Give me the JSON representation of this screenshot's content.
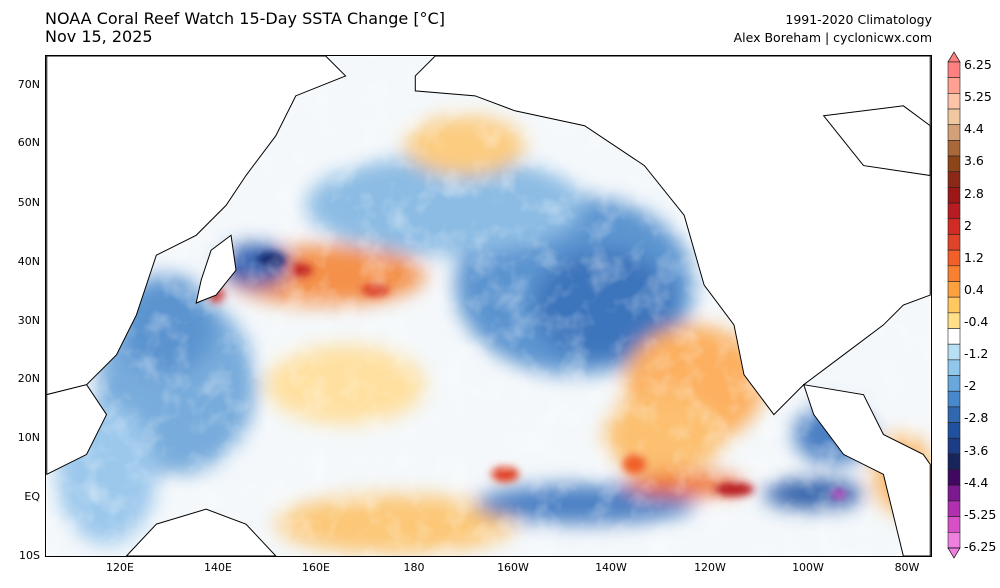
{
  "header": {
    "title": "NOAA Coral Reef Watch 15-Day SSTA Change [°C]",
    "date": "Nov 15, 2025",
    "climatology": "1991-2020 Climatology",
    "author": "Alex Boreham | cyclonicwx.com"
  },
  "map": {
    "lat_labels": [
      "70N",
      "60N",
      "50N",
      "40N",
      "30N",
      "20N",
      "10N",
      "EQ",
      "10S"
    ],
    "lon_labels": [
      "120E",
      "140E",
      "160E",
      "180",
      "160W",
      "140W",
      "120W",
      "100W",
      "80W"
    ],
    "land_color": "#ffffff",
    "coast_color": "#000000"
  },
  "colorbar": {
    "labels": [
      "6.25",
      "5.25",
      "4.4",
      "3.6",
      "2.8",
      "2",
      "1.2",
      "0.4",
      "-0.4",
      "-1.2",
      "-2",
      "-2.8",
      "-3.6",
      "-4.4",
      "-5.25",
      "-6.25"
    ],
    "colors": [
      "#ff8080",
      "#ffa090",
      "#ffc4a8",
      "#f0c8a0",
      "#d4a078",
      "#a86838",
      "#8c4418",
      "#8c2818",
      "#9c1818",
      "#b81c20",
      "#d02c24",
      "#e04428",
      "#f06028",
      "#f88030",
      "#fca040",
      "#ffc860",
      "#ffe088",
      "#ffffff",
      "#b8e0f4",
      "#90c8ec",
      "#68a8dc",
      "#4888cc",
      "#3068b0",
      "#2050a0",
      "#1c3c88",
      "#18245c",
      "#400860",
      "#7c1890",
      "#b030b0",
      "#d850c8",
      "#f080e0"
    ]
  }
}
